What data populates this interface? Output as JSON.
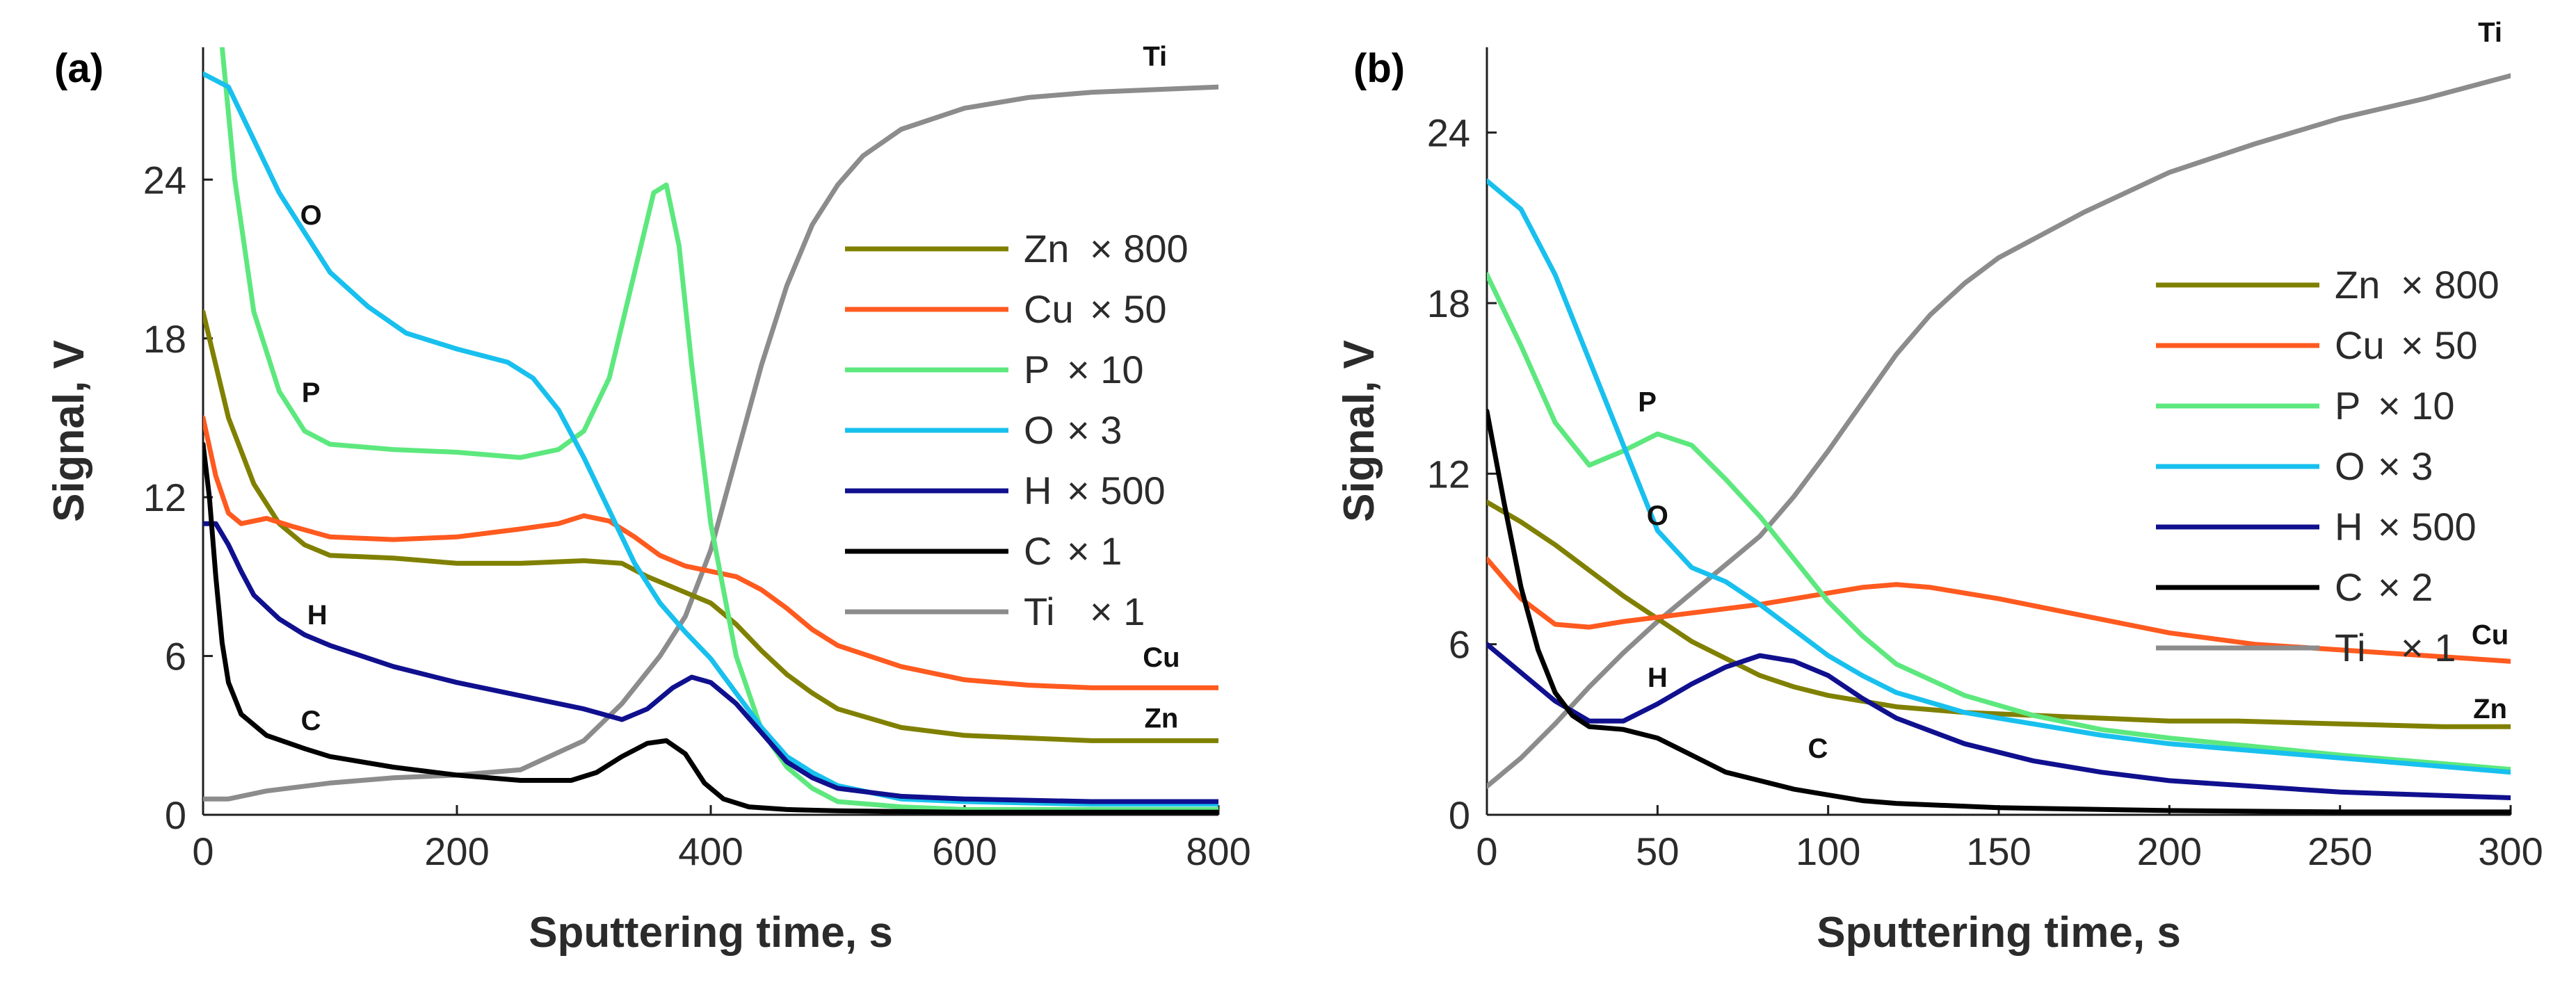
{
  "chart_data": [
    {
      "type": "line",
      "panel_label": "(a)",
      "xlabel": "Sputtering time, s",
      "ylabel": "Signal, V",
      "xlim": [
        0,
        800
      ],
      "ylim": [
        0,
        29
      ],
      "xticks": [
        0,
        200,
        400,
        600,
        800
      ],
      "yticks": [
        0,
        6,
        12,
        18,
        24
      ],
      "xtick_labels": [
        "0",
        "200",
        "400",
        "600",
        "800"
      ],
      "ytick_labels": [
        "0",
        "6",
        "12",
        "18",
        "24"
      ],
      "legend": {
        "placement": "right",
        "entries": [
          {
            "name": "Zn",
            "factor": "× 800"
          },
          {
            "name": "Cu",
            "factor": "× 50"
          },
          {
            "name": "P",
            "factor": "× 10"
          },
          {
            "name": "O",
            "factor": "× 3"
          },
          {
            "name": "H",
            "factor": "× 500"
          },
          {
            "name": "C",
            "factor": "× 1"
          },
          {
            "name": "Ti",
            "factor": "× 1"
          }
        ]
      },
      "series": [
        {
          "name": "Ti",
          "color": "#8c8c8c",
          "x": [
            0,
            20,
            50,
            100,
            150,
            200,
            250,
            300,
            330,
            360,
            380,
            400,
            420,
            440,
            460,
            480,
            500,
            520,
            550,
            600,
            650,
            700,
            750,
            800
          ],
          "y": [
            0.6,
            0.6,
            0.9,
            1.2,
            1.4,
            1.5,
            1.7,
            2.8,
            4.2,
            6.0,
            7.5,
            10.0,
            13.5,
            17.0,
            20.0,
            22.3,
            23.8,
            24.9,
            25.9,
            26.7,
            27.1,
            27.3,
            27.4,
            27.5
          ]
        },
        {
          "name": "Zn",
          "color": "#808000",
          "x": [
            0,
            20,
            40,
            60,
            80,
            100,
            150,
            200,
            250,
            300,
            330,
            350,
            380,
            400,
            420,
            440,
            460,
            480,
            500,
            550,
            600,
            650,
            700,
            750,
            800
          ],
          "y": [
            19,
            15,
            12.5,
            11,
            10.2,
            9.8,
            9.7,
            9.5,
            9.5,
            9.6,
            9.5,
            9.0,
            8.4,
            8.0,
            7.2,
            6.2,
            5.3,
            4.6,
            4.0,
            3.3,
            3.0,
            2.9,
            2.8,
            2.8,
            2.8
          ]
        },
        {
          "name": "Cu",
          "color": "#ff5a1f",
          "x": [
            0,
            10,
            20,
            30,
            50,
            70,
            100,
            150,
            200,
            250,
            280,
            300,
            320,
            340,
            360,
            380,
            400,
            420,
            440,
            460,
            480,
            500,
            550,
            600,
            650,
            700,
            750,
            800
          ],
          "y": [
            15,
            12.8,
            11.4,
            11.0,
            11.2,
            10.9,
            10.5,
            10.4,
            10.5,
            10.8,
            11.0,
            11.3,
            11.1,
            10.5,
            9.8,
            9.4,
            9.2,
            9.0,
            8.5,
            7.8,
            7.0,
            6.4,
            5.6,
            5.1,
            4.9,
            4.8,
            4.8,
            4.8
          ]
        },
        {
          "name": "P",
          "color": "#5de87e",
          "x": [
            15,
            25,
            40,
            60,
            80,
            100,
            150,
            200,
            250,
            280,
            300,
            320,
            340,
            355,
            365,
            375,
            385,
            400,
            420,
            440,
            460,
            480,
            500,
            550,
            600,
            800
          ],
          "y": [
            29,
            24,
            19,
            16,
            14.5,
            14,
            13.8,
            13.7,
            13.5,
            13.8,
            14.5,
            16.5,
            20.5,
            23.5,
            23.8,
            21.5,
            17.0,
            11.0,
            6.0,
            3.2,
            1.8,
            1.0,
            0.5,
            0.3,
            0.2,
            0.2
          ]
        },
        {
          "name": "O",
          "color": "#18c0ee",
          "x": [
            0,
            20,
            40,
            60,
            80,
            100,
            130,
            160,
            200,
            240,
            260,
            280,
            300,
            320,
            340,
            360,
            380,
            400,
            420,
            440,
            460,
            480,
            500,
            550,
            600,
            700,
            800
          ],
          "y": [
            28,
            27.5,
            25.5,
            23.5,
            22,
            20.5,
            19.2,
            18.2,
            17.6,
            17.1,
            16.5,
            15.3,
            13.5,
            11.5,
            9.5,
            8.0,
            6.9,
            5.9,
            4.6,
            3.3,
            2.2,
            1.6,
            1.1,
            0.6,
            0.5,
            0.4,
            0.4
          ]
        },
        {
          "name": "H",
          "color": "#10108f",
          "x": [
            0,
            10,
            20,
            30,
            40,
            60,
            80,
            100,
            150,
            200,
            250,
            300,
            330,
            350,
            370,
            385,
            400,
            420,
            440,
            460,
            480,
            500,
            550,
            600,
            700,
            800
          ],
          "y": [
            11,
            11,
            10.2,
            9.2,
            8.3,
            7.4,
            6.8,
            6.4,
            5.6,
            5.0,
            4.5,
            4.0,
            3.6,
            4.0,
            4.8,
            5.2,
            5.0,
            4.2,
            3.1,
            2.0,
            1.4,
            1.0,
            0.7,
            0.6,
            0.5,
            0.5
          ]
        },
        {
          "name": "C",
          "color": "#000000",
          "x": [
            0,
            5,
            10,
            15,
            20,
            30,
            50,
            80,
            100,
            150,
            200,
            250,
            290,
            310,
            330,
            350,
            365,
            380,
            395,
            410,
            430,
            460,
            500,
            600,
            700,
            800
          ],
          "y": [
            14,
            12,
            9,
            6.5,
            5,
            3.8,
            3.0,
            2.5,
            2.2,
            1.8,
            1.5,
            1.3,
            1.3,
            1.6,
            2.2,
            2.7,
            2.8,
            2.3,
            1.2,
            0.6,
            0.3,
            0.2,
            0.15,
            0.1,
            0.1,
            0.1
          ]
        }
      ],
      "curve_labels": [
        {
          "text": "O",
          "x": 85,
          "y": 22.3
        },
        {
          "text": "P",
          "x": 85,
          "y": 15.6
        },
        {
          "text": "H",
          "x": 90,
          "y": 7.2
        },
        {
          "text": "C",
          "x": 85,
          "y": 3.2
        },
        {
          "text": "Ti",
          "x": 750,
          "y": 28.3
        },
        {
          "text": "Cu",
          "x": 755,
          "y": 5.6
        },
        {
          "text": "Zn",
          "x": 755,
          "y": 3.3
        }
      ]
    },
    {
      "type": "line",
      "panel_label": "(b)",
      "xlabel": "Sputtering time, s",
      "ylabel": "Signal, V",
      "xlim": [
        0,
        300
      ],
      "ylim": [
        0,
        27
      ],
      "xticks": [
        0,
        50,
        100,
        150,
        200,
        250,
        300
      ],
      "yticks": [
        0,
        6,
        12,
        18,
        24
      ],
      "xtick_labels": [
        "0",
        "50",
        "100",
        "150",
        "200",
        "250",
        "300"
      ],
      "ytick_labels": [
        "0",
        "6",
        "12",
        "18",
        "24"
      ],
      "legend": {
        "placement": "right",
        "entries": [
          {
            "name": "Zn",
            "factor": "× 800"
          },
          {
            "name": "Cu",
            "factor": "× 50"
          },
          {
            "name": "P",
            "factor": "× 10"
          },
          {
            "name": "O",
            "factor": "× 3"
          },
          {
            "name": "H",
            "factor": "× 500"
          },
          {
            "name": "C",
            "factor": "× 2"
          },
          {
            "name": "Ti",
            "factor": "× 1"
          }
        ]
      },
      "series": [
        {
          "name": "Ti",
          "color": "#8c8c8c",
          "x": [
            0,
            10,
            20,
            30,
            40,
            50,
            60,
            70,
            80,
            90,
            100,
            110,
            120,
            130,
            140,
            150,
            175,
            200,
            225,
            250,
            275,
            300
          ],
          "y": [
            1.0,
            2.0,
            3.2,
            4.5,
            5.7,
            6.8,
            7.8,
            8.8,
            9.8,
            11.2,
            12.8,
            14.5,
            16.2,
            17.6,
            18.7,
            19.6,
            21.2,
            22.6,
            23.6,
            24.5,
            25.2,
            26.0
          ]
        },
        {
          "name": "Zn",
          "color": "#808000",
          "x": [
            0,
            10,
            20,
            30,
            40,
            50,
            60,
            70,
            80,
            90,
            100,
            120,
            140,
            160,
            180,
            200,
            220,
            250,
            280,
            300
          ],
          "y": [
            11,
            10.3,
            9.5,
            8.6,
            7.7,
            6.9,
            6.1,
            5.5,
            4.9,
            4.5,
            4.2,
            3.8,
            3.6,
            3.5,
            3.4,
            3.3,
            3.3,
            3.2,
            3.1,
            3.1
          ]
        },
        {
          "name": "Cu",
          "color": "#ff5a1f",
          "x": [
            0,
            10,
            20,
            30,
            40,
            60,
            80,
            100,
            110,
            120,
            130,
            150,
            175,
            200,
            225,
            250,
            275,
            300
          ],
          "y": [
            9.0,
            7.6,
            6.7,
            6.6,
            6.8,
            7.1,
            7.4,
            7.8,
            8.0,
            8.1,
            8.0,
            7.6,
            7.0,
            6.4,
            6.0,
            5.8,
            5.6,
            5.4
          ]
        },
        {
          "name": "P",
          "color": "#5de87e",
          "x": [
            0,
            10,
            20,
            30,
            40,
            50,
            60,
            70,
            80,
            90,
            100,
            110,
            120,
            140,
            160,
            180,
            200,
            250,
            300
          ],
          "y": [
            19,
            16.5,
            13.8,
            12.3,
            12.8,
            13.4,
            13.0,
            11.8,
            10.5,
            9.0,
            7.5,
            6.3,
            5.3,
            4.2,
            3.5,
            3.0,
            2.7,
            2.1,
            1.6
          ]
        },
        {
          "name": "O",
          "color": "#18c0ee",
          "x": [
            0,
            10,
            20,
            30,
            40,
            50,
            60,
            70,
            80,
            90,
            100,
            110,
            120,
            140,
            160,
            180,
            200,
            250,
            300
          ],
          "y": [
            22.3,
            21.3,
            19.0,
            16.0,
            13.0,
            10.0,
            8.7,
            8.2,
            7.4,
            6.5,
            5.6,
            4.9,
            4.3,
            3.6,
            3.2,
            2.8,
            2.5,
            2.0,
            1.5
          ]
        },
        {
          "name": "H",
          "color": "#10108f",
          "x": [
            0,
            10,
            20,
            30,
            40,
            50,
            60,
            70,
            80,
            90,
            100,
            110,
            120,
            140,
            160,
            180,
            200,
            250,
            300
          ],
          "y": [
            6.0,
            5.0,
            4.0,
            3.3,
            3.3,
            3.9,
            4.6,
            5.2,
            5.6,
            5.4,
            4.9,
            4.1,
            3.4,
            2.5,
            1.9,
            1.5,
            1.2,
            0.8,
            0.6
          ]
        },
        {
          "name": "C",
          "color": "#000000",
          "x": [
            0,
            5,
            10,
            15,
            20,
            25,
            30,
            40,
            50,
            60,
            70,
            80,
            90,
            100,
            110,
            120,
            150,
            200,
            250,
            300
          ],
          "y": [
            14.2,
            11.0,
            8.0,
            5.8,
            4.3,
            3.5,
            3.1,
            3.0,
            2.7,
            2.1,
            1.5,
            1.2,
            0.9,
            0.7,
            0.5,
            0.4,
            0.25,
            0.15,
            0.1,
            0.1
          ]
        }
      ],
      "curve_labels": [
        {
          "text": "P",
          "x": 47,
          "y": 14.2
        },
        {
          "text": "O",
          "x": 50,
          "y": 10.2
        },
        {
          "text": "H",
          "x": 50,
          "y": 4.5
        },
        {
          "text": "C",
          "x": 97,
          "y": 2.0
        },
        {
          "text": "Ti",
          "x": 294,
          "y": 27.2
        },
        {
          "text": "Cu",
          "x": 294,
          "y": 6.0
        },
        {
          "text": "Zn",
          "x": 294,
          "y": 3.4
        }
      ]
    }
  ]
}
